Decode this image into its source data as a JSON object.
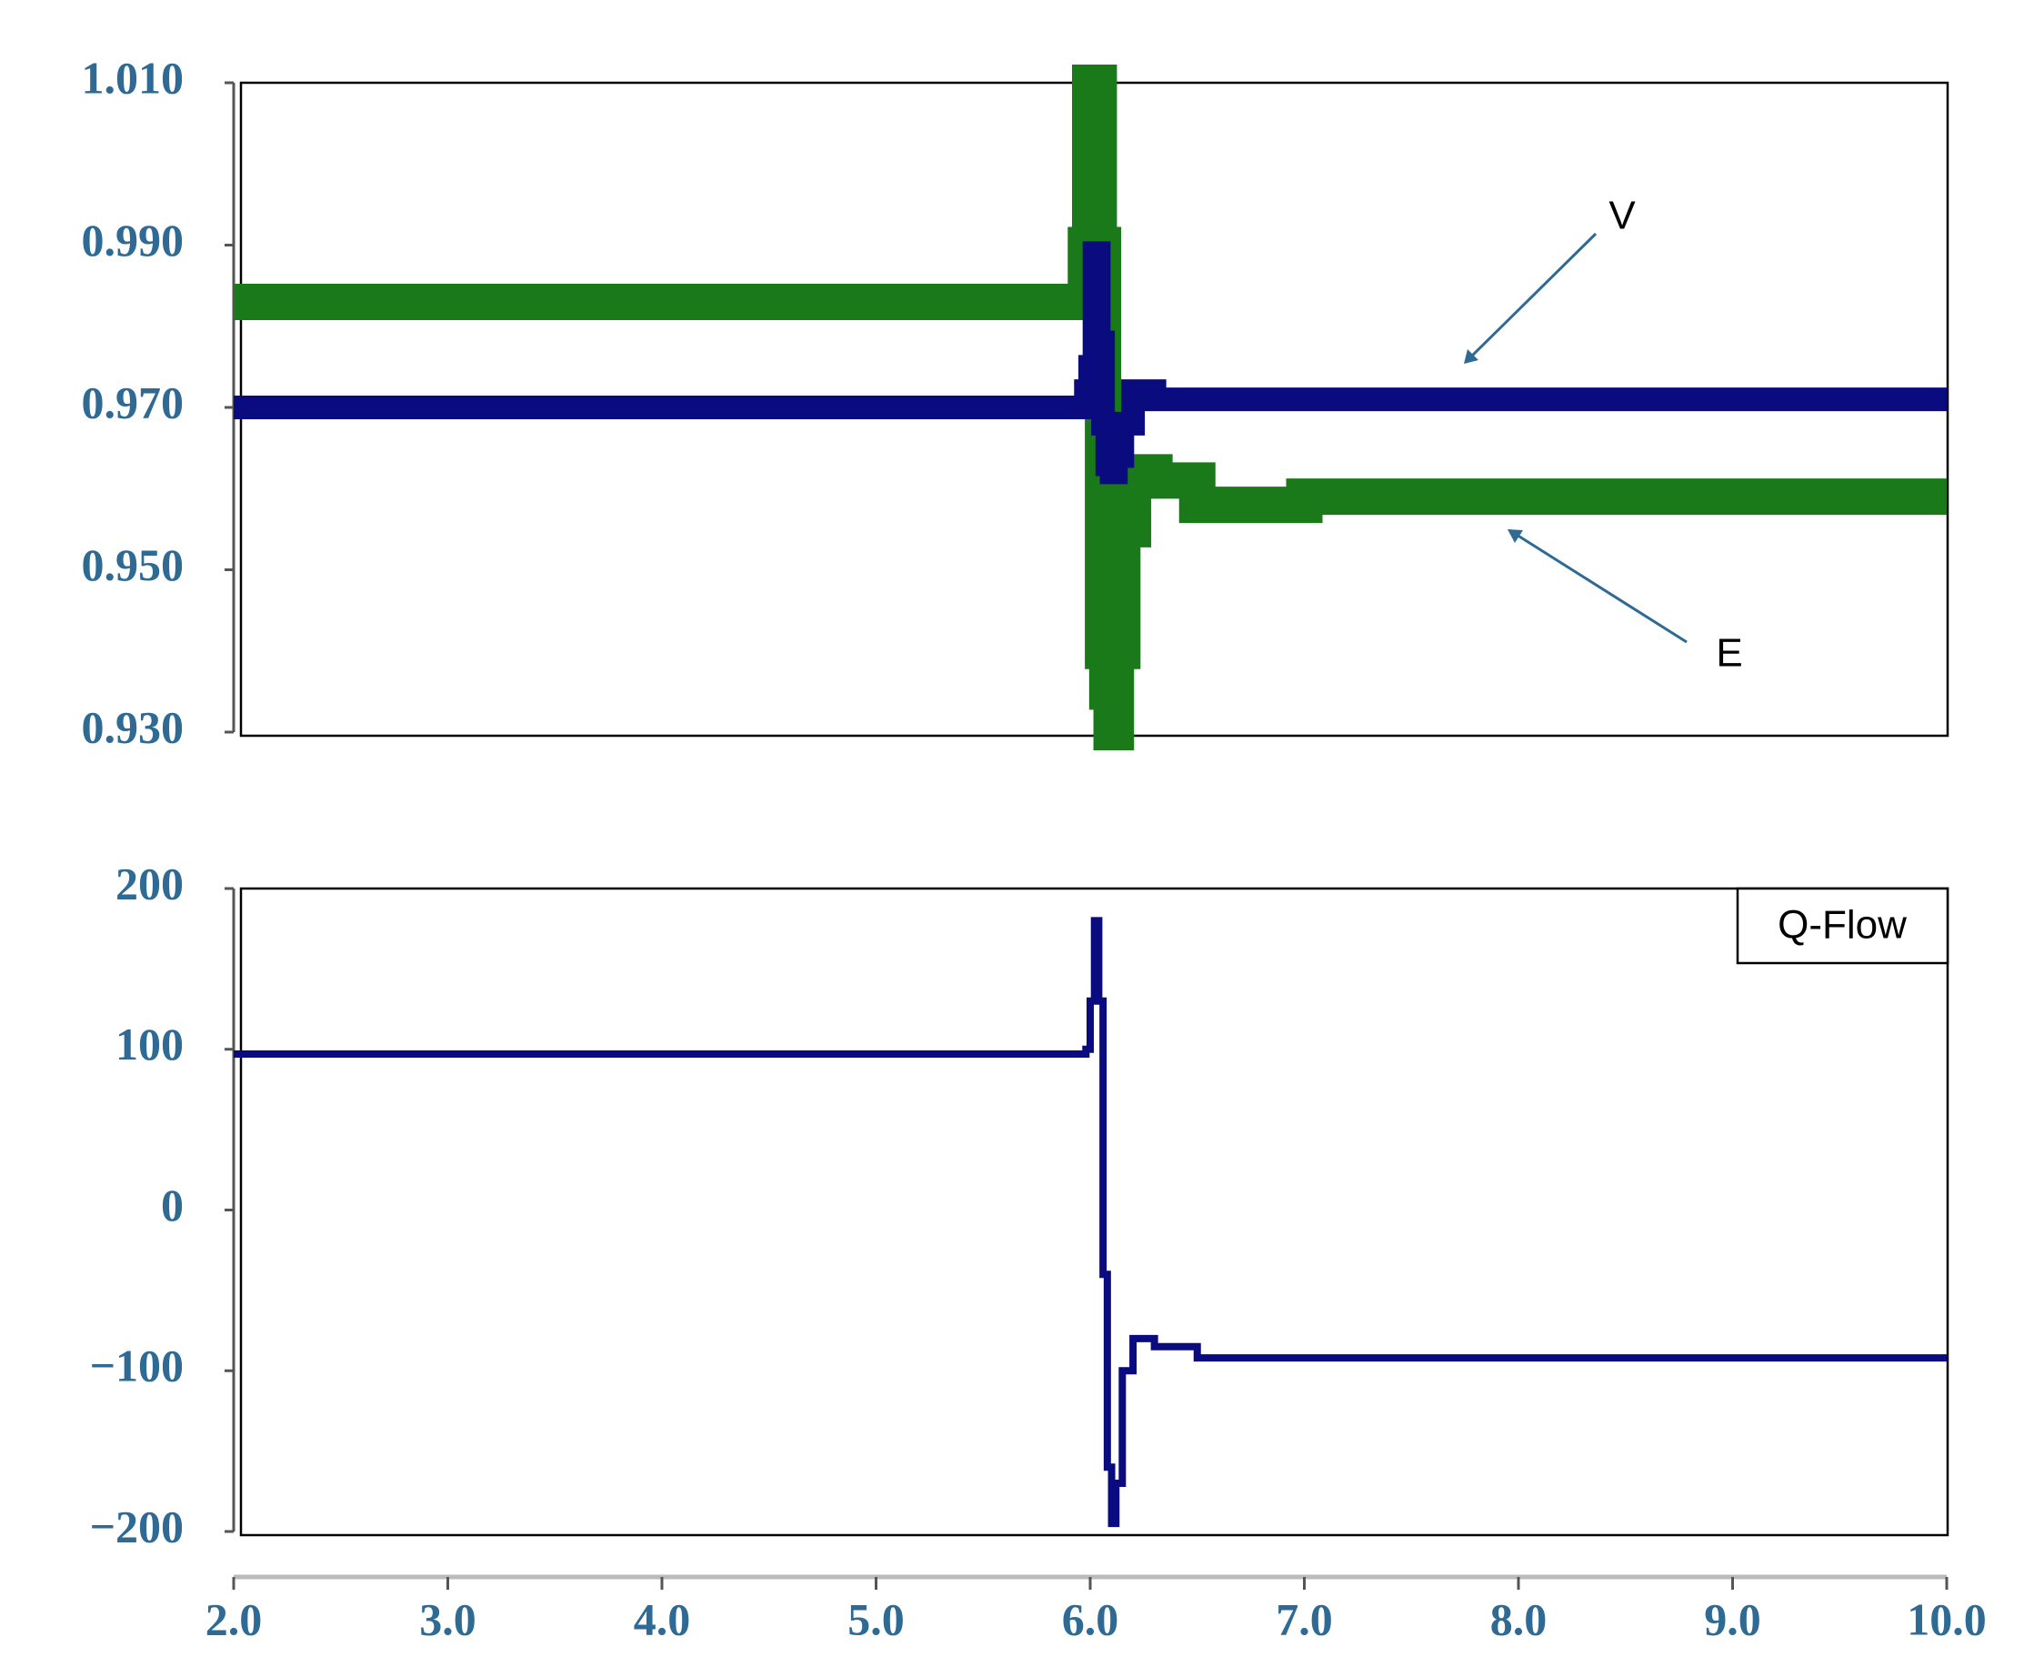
{
  "chart_data": [
    {
      "type": "line",
      "x": [
        2.0,
        2.5,
        3.0,
        3.5,
        4.0,
        4.5,
        5.0,
        5.5,
        5.9,
        5.98,
        6.0,
        6.02,
        6.04,
        6.06,
        6.08,
        6.1,
        6.12,
        6.15,
        6.2,
        6.3,
        6.5,
        7.0,
        7.5,
        8.0,
        8.5,
        9.0,
        9.5,
        10.0
      ],
      "series": [
        {
          "name": "V",
          "color": "#0b0b80",
          "values": [
            0.97,
            0.97,
            0.97,
            0.97,
            0.97,
            0.97,
            0.97,
            0.97,
            0.97,
            0.972,
            0.975,
            0.989,
            0.978,
            0.968,
            0.963,
            0.962,
            0.964,
            0.968,
            0.972,
            0.971,
            0.971,
            0.971,
            0.971,
            0.971,
            0.971,
            0.971,
            0.971,
            0.971
          ]
        },
        {
          "name": "E",
          "color": "#1a7a1a",
          "values": [
            0.983,
            0.983,
            0.983,
            0.983,
            0.983,
            0.983,
            0.983,
            0.983,
            0.983,
            0.99,
            1.01,
            1.01,
            0.99,
            0.94,
            0.935,
            0.93,
            0.94,
            0.955,
            0.962,
            0.961,
            0.958,
            0.959,
            0.959,
            0.959,
            0.959,
            0.959,
            0.959,
            0.959
          ]
        }
      ],
      "xlim": [
        2,
        10
      ],
      "ylim": [
        0.93,
        1.01
      ],
      "yticks": [
        {
          "value": 1.01,
          "label": "1.010"
        },
        {
          "value": 0.99,
          "label": "0.990"
        },
        {
          "value": 0.97,
          "label": "0.970"
        },
        {
          "value": 0.95,
          "label": "0.950"
        },
        {
          "value": 0.93,
          "label": "0.930"
        }
      ]
    },
    {
      "type": "line",
      "x": [
        2.0,
        2.5,
        3.0,
        3.5,
        4.0,
        4.5,
        5.0,
        5.5,
        5.9,
        5.98,
        6.0,
        6.02,
        6.04,
        6.06,
        6.08,
        6.1,
        6.12,
        6.15,
        6.2,
        6.3,
        6.5,
        7.0,
        7.5,
        8.0,
        8.5,
        9.0,
        9.5,
        10.0
      ],
      "series": [
        {
          "name": "Q-Flow",
          "color": "#0b0b80",
          "values": [
            97,
            97,
            97,
            97,
            97,
            97,
            97,
            97,
            97,
            100,
            130,
            180,
            130,
            -40,
            -160,
            -195,
            -170,
            -100,
            -80,
            -85,
            -92,
            -92,
            -92,
            -92,
            -92,
            -92,
            -92,
            -92
          ]
        }
      ],
      "xlim": [
        2,
        10
      ],
      "ylim": [
        -200,
        200
      ],
      "yticks": [
        200,
        100,
        0,
        {
          "value": -100,
          "label": "−100"
        },
        {
          "value": -200,
          "label": "−200"
        }
      ],
      "xticks": [
        {
          "value": 2,
          "label": "2.0"
        },
        {
          "value": 3,
          "label": "3.0"
        },
        {
          "value": 4,
          "label": "4.0"
        },
        {
          "value": 5,
          "label": "5.0"
        },
        {
          "value": 6,
          "label": "6.0"
        },
        {
          "value": 7,
          "label": "7.0"
        },
        {
          "value": 8,
          "label": "8.0"
        },
        {
          "value": 9,
          "label": "9.0"
        },
        {
          "value": 10,
          "label": "10.0"
        }
      ],
      "legend": "top-right"
    }
  ]
}
